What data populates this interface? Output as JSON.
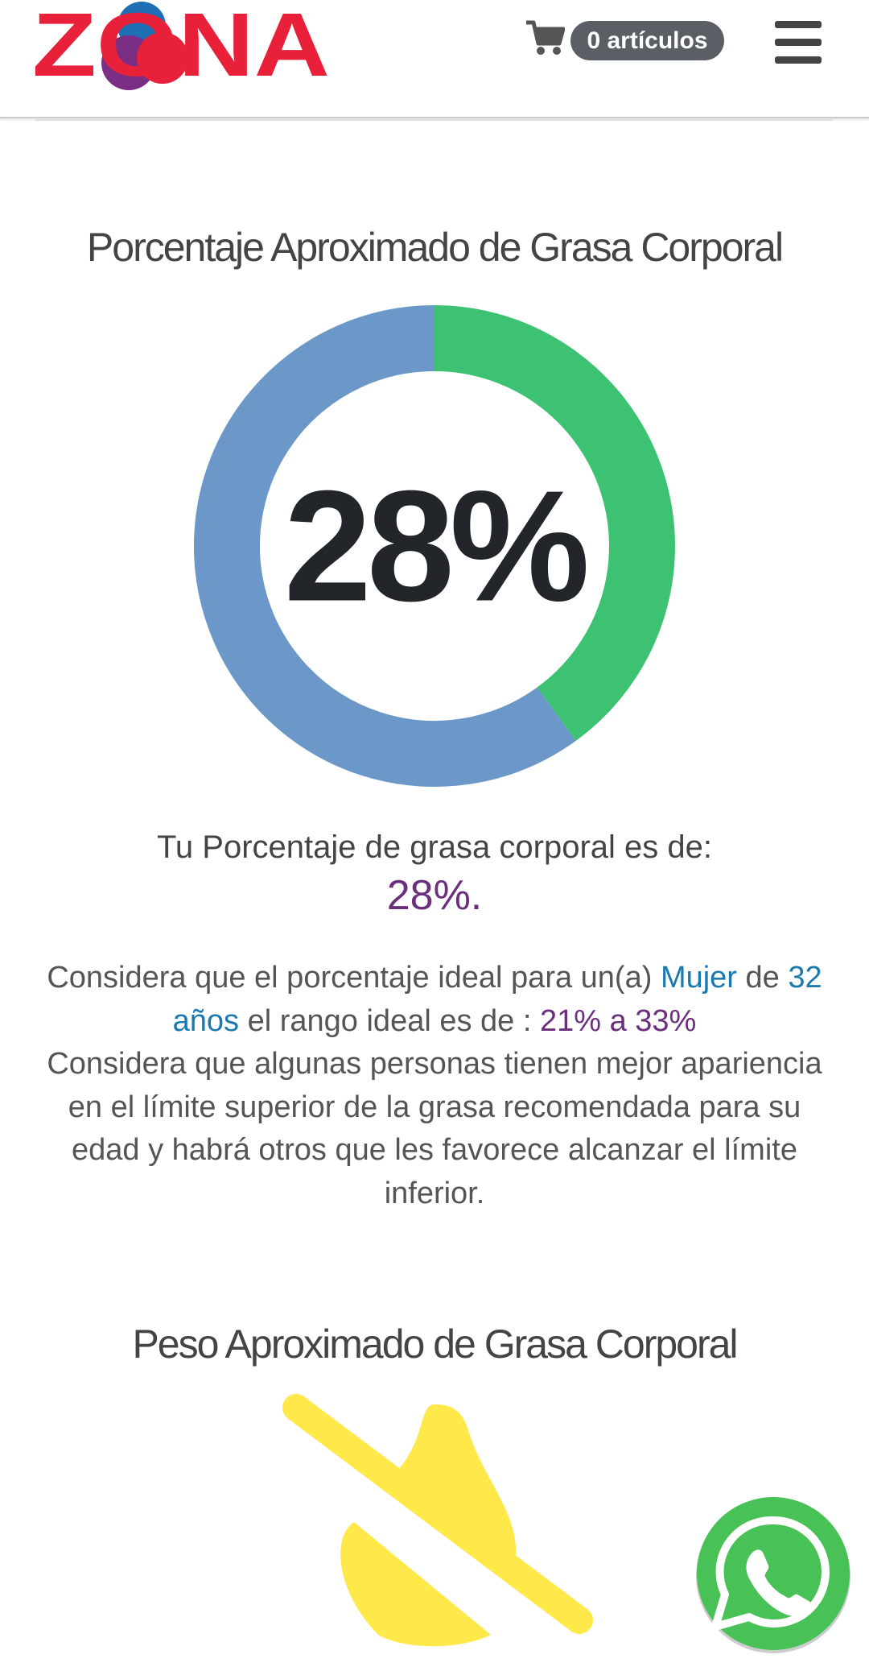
{
  "header": {
    "logo": "ZONA",
    "cart_label": "0 artículos"
  },
  "section1": {
    "title": "Porcentaje Aproximado de Grasa Corporal",
    "donut": {
      "center_label": "28%",
      "segments": [
        {
          "color": "#3cc272",
          "value": 40
        },
        {
          "color": "#6b98c9",
          "value": 60
        }
      ]
    },
    "result_intro": "Tu Porcentaje de grasa corporal es de:",
    "result_value": "28%.",
    "ideal": {
      "intro": "Considera que el porcentaje ideal para un(a)",
      "gender": "Mujer",
      "connector": "de",
      "age": "32 años",
      "middle": "el rango ideal es de :",
      "range": "21% a 33%"
    },
    "note": "Considera que algunas personas tienen mejor apariencia en el límite superior de la grasa recomendada para su edad y habrá otros que les favorece alcanzar el límite inferior."
  },
  "section2": {
    "title": "Peso Aproximado de Grasa Corporal"
  }
}
